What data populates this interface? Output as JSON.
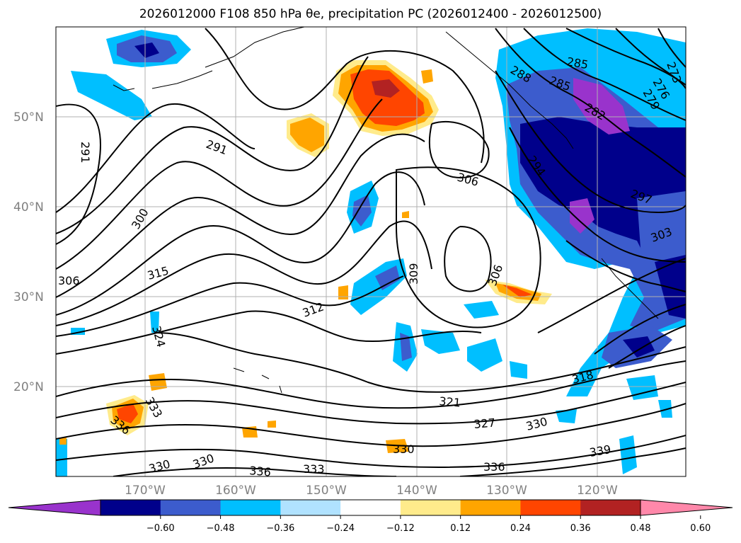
{
  "title": "2026012000 F108 850 hPa θe, precipitation PC (2026012400 - 2026012500)",
  "map": {
    "lon_labels": [
      "170°W",
      "160°W",
      "150°W",
      "140°W",
      "130°W",
      "120°W"
    ],
    "lat_labels": [
      "50°N",
      "40°N",
      "30°N",
      "20°N"
    ],
    "contour_labels": [
      "291",
      "291",
      "300",
      "306",
      "306",
      "306",
      "309",
      "312",
      "315",
      "318",
      "321",
      "324",
      "327",
      "330",
      "330",
      "330",
      "330",
      "333",
      "333",
      "336",
      "336",
      "336",
      "339",
      "285",
      "285",
      "288",
      "279",
      "276",
      "273",
      "282",
      "294",
      "297",
      "303"
    ]
  },
  "colorbar": {
    "colors": [
      "#9933cc",
      "#00008b",
      "#3c5ccd",
      "#00bfff",
      "#b0e2ff",
      "#ffffff",
      "#ffeb8b",
      "#ffa500",
      "#ff4500",
      "#b22222",
      "#ff88aa"
    ],
    "tick_labels": [
      "−0.60",
      "−0.48",
      "−0.36",
      "−0.24",
      "−0.12",
      "0.12",
      "0.24",
      "0.36",
      "0.48",
      "0.60"
    ]
  }
}
